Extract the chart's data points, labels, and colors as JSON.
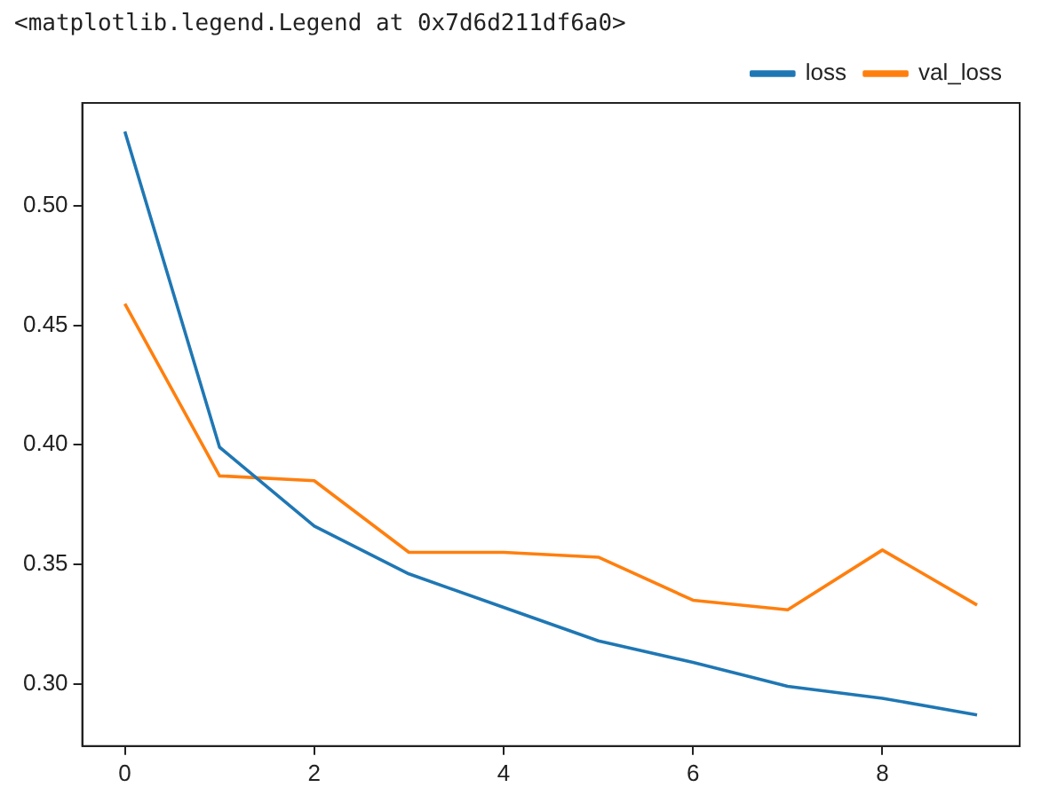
{
  "chart_data": {
    "type": "line",
    "annotations": [
      "<matplotlib.legend.Legend at 0x7d6d211df6a0>"
    ],
    "x": [
      0,
      1,
      2,
      3,
      4,
      5,
      6,
      7,
      8,
      9
    ],
    "series": [
      {
        "name": "loss",
        "color": "#1f77b4",
        "values": [
          0.531,
          0.399,
          0.366,
          0.346,
          0.332,
          0.318,
          0.309,
          0.299,
          0.294,
          0.287
        ]
      },
      {
        "name": "val_loss",
        "color": "#ff7f0e",
        "values": [
          0.459,
          0.387,
          0.385,
          0.355,
          0.355,
          0.353,
          0.335,
          0.331,
          0.356,
          0.333
        ]
      }
    ],
    "xlim": [
      -0.45,
      9.45
    ],
    "xticks": [
      0,
      2,
      4,
      6,
      8
    ],
    "ylim": [
      0.274,
      0.543
    ],
    "yticks": [
      {
        "value": 0.3,
        "label": "0.30"
      },
      {
        "value": 0.35,
        "label": "0.35"
      },
      {
        "value": 0.4,
        "label": "0.40"
      },
      {
        "value": 0.45,
        "label": "0.45"
      },
      {
        "value": 0.5,
        "label": "0.50"
      }
    ],
    "grid": false,
    "legend": "top right",
    "marker": "none",
    "line_style": "solid"
  }
}
